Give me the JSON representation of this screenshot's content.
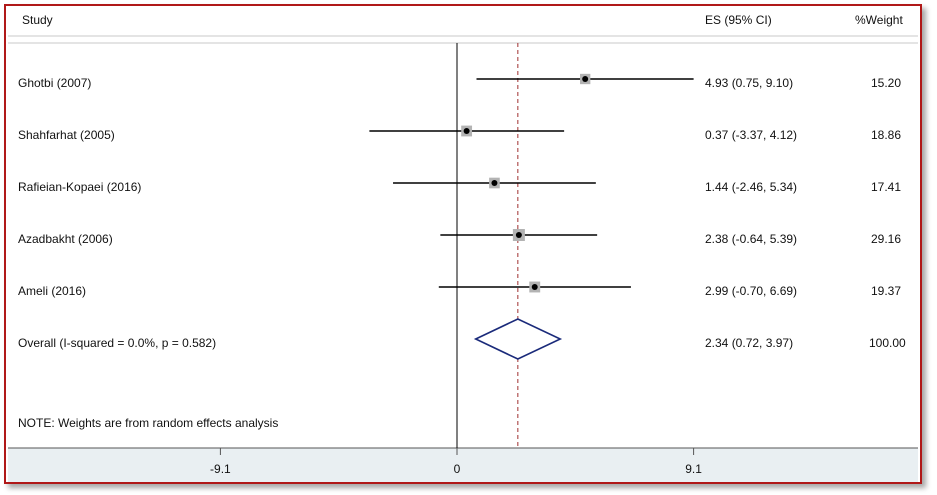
{
  "header": {
    "study": "Study",
    "es": "ES (95% CI)",
    "weight": "%Weight"
  },
  "note": "NOTE: Weights are from random effects analysis",
  "colors": {
    "frame": "#b01818",
    "line": "#000000",
    "diamond": "#1a2a7a",
    "ref_line": "#a03030",
    "box": "#b3b3b3",
    "axis_band": "#e9eff2"
  },
  "chart_data": {
    "type": "forest",
    "axis": {
      "ticks": [
        -9.1,
        0,
        9.1
      ],
      "tick_labels": [
        "-9.1",
        "0",
        "9.1"
      ],
      "null_value": 0
    },
    "overall_line": 2.34,
    "studies": [
      {
        "label": "Ghotbi (2007)",
        "es": 4.93,
        "lo": 0.75,
        "hi": 9.1,
        "ci_text": "4.93 (0.75, 9.10)",
        "weight": 15.2,
        "weight_text": "15.20"
      },
      {
        "label": "Shahfarhat (2005)",
        "es": 0.37,
        "lo": -3.37,
        "hi": 4.12,
        "ci_text": "0.37 (-3.37, 4.12)",
        "weight": 18.86,
        "weight_text": "18.86"
      },
      {
        "label": "Rafieian-Kopaei (2016)",
        "es": 1.44,
        "lo": -2.46,
        "hi": 5.34,
        "ci_text": "1.44 (-2.46, 5.34)",
        "weight": 17.41,
        "weight_text": "17.41"
      },
      {
        "label": "Azadbakht (2006)",
        "es": 2.38,
        "lo": -0.64,
        "hi": 5.39,
        "ci_text": "2.38 (-0.64, 5.39)",
        "weight": 29.16,
        "weight_text": "29.16"
      },
      {
        "label": "Ameli (2016)",
        "es": 2.99,
        "lo": -0.7,
        "hi": 6.69,
        "ci_text": "2.99 (-0.70, 6.69)",
        "weight": 19.37,
        "weight_text": "19.37"
      }
    ],
    "overall": {
      "label": "Overall  (I-squared = 0.0%, p = 0.582)",
      "es": 2.34,
      "lo": 0.72,
      "hi": 3.97,
      "ci_text": "2.34 (0.72, 3.97)",
      "weight_text": "100.00"
    }
  }
}
